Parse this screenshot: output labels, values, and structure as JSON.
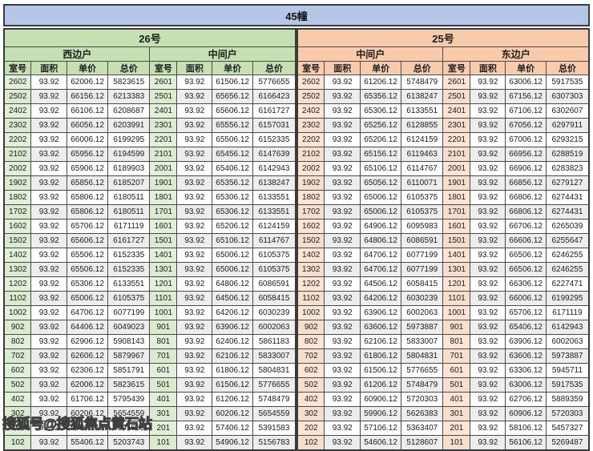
{
  "building_header": "45幢",
  "watermark_text": "搜狐号@搜狐焦点黄石站",
  "column_headers": [
    "室号",
    "面积",
    "单价",
    "总价"
  ],
  "colors": {
    "title_bar": "#b4c7e7",
    "green_header": "#c6e0b4",
    "green_room_column": "#e2efda",
    "orange_header": "#f8cbad",
    "orange_room_column": "#fce4d6",
    "alt_row": "#ededed",
    "border": "#3a3a3a"
  },
  "tables": [
    {
      "unit_label": "26号",
      "theme": "green",
      "section_labels": [
        "西边户",
        "中间户"
      ],
      "rows": [
        [
          "2602",
          "93.92",
          "62006.12",
          "5823615",
          "2601",
          "93.92",
          "61506.12",
          "5776655"
        ],
        [
          "2502",
          "93.92",
          "66156.12",
          "6213383",
          "2501",
          "93.92",
          "65656.12",
          "6166423"
        ],
        [
          "2402",
          "93.92",
          "66106.12",
          "6208687",
          "2401",
          "93.92",
          "65606.12",
          "6161727"
        ],
        [
          "2302",
          "93.92",
          "66056.12",
          "6203991",
          "2301",
          "93.92",
          "65556.12",
          "6157031"
        ],
        [
          "2202",
          "93.92",
          "66006.12",
          "6199295",
          "2201",
          "93.92",
          "65506.12",
          "6152335"
        ],
        [
          "2102",
          "93.92",
          "65956.12",
          "6194599",
          "2101",
          "93.92",
          "65456.12",
          "6147639"
        ],
        [
          "2002",
          "93.92",
          "65906.12",
          "6189903",
          "2001",
          "93.92",
          "65406.12",
          "6142943"
        ],
        [
          "1902",
          "93.92",
          "65856.12",
          "6185207",
          "1901",
          "93.92",
          "65356.12",
          "6138247"
        ],
        [
          "1802",
          "93.92",
          "65806.12",
          "6180511",
          "1801",
          "93.92",
          "65306.12",
          "6133551"
        ],
        [
          "1702",
          "93.92",
          "65806.12",
          "6180511",
          "1701",
          "93.92",
          "65306.12",
          "6133551"
        ],
        [
          "1602",
          "93.92",
          "65706.12",
          "6171119",
          "1601",
          "93.92",
          "65206.12",
          "6124159"
        ],
        [
          "1502",
          "93.92",
          "65606.12",
          "6161727",
          "1501",
          "93.92",
          "65106.12",
          "6114767"
        ],
        [
          "1402",
          "93.92",
          "65506.12",
          "6152335",
          "1401",
          "93.92",
          "65006.12",
          "6105375"
        ],
        [
          "1302",
          "93.92",
          "65506.12",
          "6152335",
          "1301",
          "93.92",
          "65006.12",
          "6105375"
        ],
        [
          "1202",
          "93.92",
          "65306.12",
          "6133551",
          "1201",
          "93.92",
          "64806.12",
          "6086591"
        ],
        [
          "1102",
          "93.92",
          "65006.12",
          "6105375",
          "1101",
          "93.92",
          "64506.12",
          "6058415"
        ],
        [
          "1002",
          "93.92",
          "64706.12",
          "6077199",
          "1001",
          "93.92",
          "64206.12",
          "6030239"
        ],
        [
          "902",
          "93.92",
          "64406.12",
          "6049023",
          "901",
          "93.92",
          "63906.12",
          "6002063"
        ],
        [
          "802",
          "93.92",
          "62906.12",
          "5908143",
          "801",
          "93.92",
          "62406.12",
          "5861183"
        ],
        [
          "702",
          "93.92",
          "62606.12",
          "5879967",
          "701",
          "93.92",
          "62106.12",
          "5833007"
        ],
        [
          "602",
          "93.92",
          "62306.12",
          "5851791",
          "601",
          "93.92",
          "61806.12",
          "5804831"
        ],
        [
          "502",
          "93.92",
          "62006.12",
          "5823615",
          "501",
          "93.92",
          "61506.12",
          "5776655"
        ],
        [
          "402",
          "93.92",
          "61706.12",
          "5795439",
          "401",
          "93.92",
          "61206.12",
          "5748479"
        ],
        [
          "302",
          "93.92",
          "60206.12",
          "5654559",
          "301",
          "93.92",
          "60206.12",
          "5654559"
        ],
        [
          "202",
          "93.92",
          "57406.12",
          "5391583",
          "201",
          "93.92",
          "57406.12",
          "5391583"
        ],
        [
          "102",
          "93.92",
          "55406.12",
          "5203743",
          "101",
          "93.92",
          "54906.12",
          "5156783"
        ]
      ]
    },
    {
      "unit_label": "25号",
      "theme": "orange",
      "section_labels": [
        "中间户",
        "东边户"
      ],
      "rows": [
        [
          "2602",
          "93.92",
          "61206.12",
          "5748479",
          "2601",
          "93.92",
          "63006.12",
          "5917535"
        ],
        [
          "2502",
          "93.92",
          "65356.12",
          "6138247",
          "2501",
          "93.92",
          "67156.12",
          "6307303"
        ],
        [
          "2402",
          "93.92",
          "65306.12",
          "6133551",
          "2401",
          "93.92",
          "67106.12",
          "6302607"
        ],
        [
          "2302",
          "93.92",
          "65256.12",
          "6128855",
          "2301",
          "93.92",
          "67056.12",
          "6297911"
        ],
        [
          "2202",
          "93.92",
          "65206.12",
          "6124159",
          "2201",
          "93.92",
          "67006.12",
          "6293215"
        ],
        [
          "2102",
          "93.92",
          "65156.12",
          "6119463",
          "2101",
          "93.92",
          "66956.12",
          "6288519"
        ],
        [
          "2002",
          "93.92",
          "65106.12",
          "6114767",
          "2001",
          "93.92",
          "66906.12",
          "6283823"
        ],
        [
          "1902",
          "93.92",
          "65056.12",
          "6110071",
          "1901",
          "93.92",
          "66856.12",
          "6279127"
        ],
        [
          "1802",
          "93.92",
          "65006.12",
          "6105375",
          "1801",
          "93.92",
          "66806.12",
          "6274431"
        ],
        [
          "1702",
          "93.92",
          "65006.12",
          "6105375",
          "1701",
          "93.92",
          "66806.12",
          "6274431"
        ],
        [
          "1602",
          "93.92",
          "64906.12",
          "6095983",
          "1601",
          "93.92",
          "66706.12",
          "6265039"
        ],
        [
          "1502",
          "93.92",
          "64806.12",
          "6086591",
          "1501",
          "93.92",
          "66606.12",
          "6255647"
        ],
        [
          "1402",
          "93.92",
          "64706.12",
          "6077199",
          "1401",
          "93.92",
          "66506.12",
          "6246255"
        ],
        [
          "1302",
          "93.92",
          "64706.12",
          "6077199",
          "1301",
          "93.92",
          "66506.12",
          "6246255"
        ],
        [
          "1202",
          "93.92",
          "64506.12",
          "6058415",
          "1201",
          "93.92",
          "66306.12",
          "6227471"
        ],
        [
          "1102",
          "93.92",
          "64206.12",
          "6030239",
          "1101",
          "93.92",
          "66006.12",
          "6199295"
        ],
        [
          "1002",
          "93.92",
          "63906.12",
          "6002063",
          "1001",
          "93.92",
          "65706.12",
          "6171119"
        ],
        [
          "902",
          "93.92",
          "63606.12",
          "5973887",
          "901",
          "93.92",
          "65406.12",
          "6142943"
        ],
        [
          "802",
          "93.92",
          "62106.12",
          "5833007",
          "801",
          "93.92",
          "63906.12",
          "6002063"
        ],
        [
          "702",
          "93.92",
          "61806.12",
          "5804831",
          "701",
          "93.92",
          "63606.12",
          "5973887"
        ],
        [
          "602",
          "93.92",
          "61506.12",
          "5776655",
          "601",
          "93.92",
          "63306.12",
          "5945711"
        ],
        [
          "502",
          "93.92",
          "61206.12",
          "5748479",
          "501",
          "93.92",
          "63006.12",
          "5917535"
        ],
        [
          "402",
          "93.92",
          "60906.12",
          "5720303",
          "401",
          "93.92",
          "62706.12",
          "5889359"
        ],
        [
          "302",
          "93.92",
          "59906.12",
          "5626383",
          "301",
          "93.92",
          "60906.12",
          "5720303"
        ],
        [
          "202",
          "93.92",
          "57106.12",
          "5363407",
          "201",
          "93.92",
          "58106.12",
          "5457327"
        ],
        [
          "102",
          "93.92",
          "54606.12",
          "5128607",
          "101",
          "93.92",
          "56106.12",
          "5269487"
        ]
      ]
    }
  ]
}
